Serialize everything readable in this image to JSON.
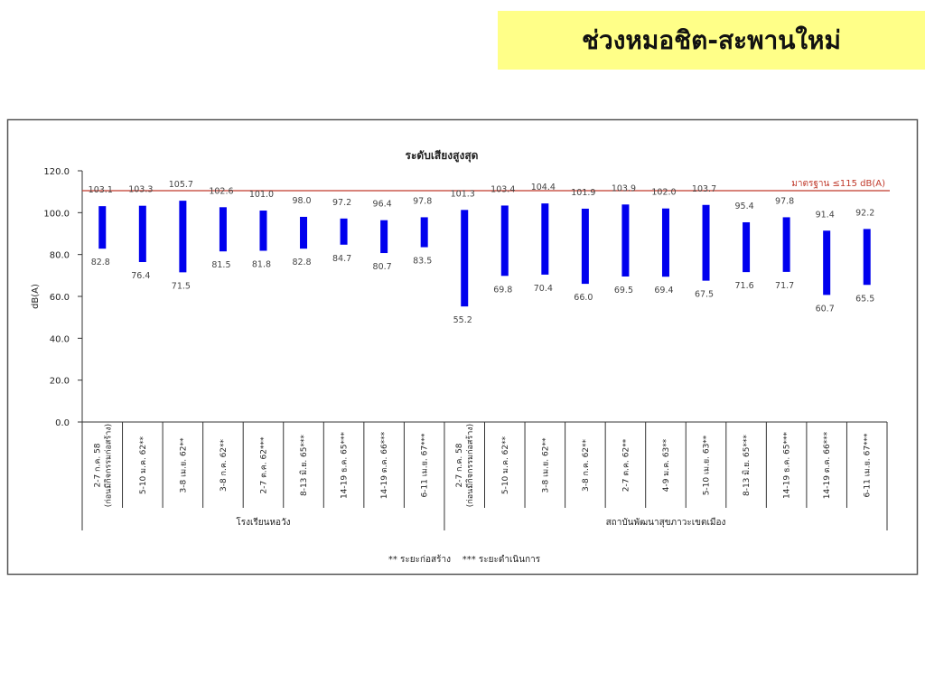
{
  "header": {
    "title": "ช่วงหมอชิต-สะพานใหม่",
    "background": "#ffff88"
  },
  "chart_data": {
    "type": "bar",
    "subtype": "floating-range",
    "title": "ระดับเสียงสูงสุด",
    "xlabel": "",
    "ylabel": "dB(A)",
    "ylim": [
      0,
      120
    ],
    "yticks": [
      "0.0",
      "20.0",
      "40.0",
      "60.0",
      "80.0",
      "100.0",
      "120.0"
    ],
    "grid": false,
    "bar_color": "#0000ee",
    "reference_line": {
      "label": "มาตรฐาน ≤115 dB(A)",
      "color": "#c0392b"
    },
    "groups": [
      {
        "name": "โรงเรียนหอวัง",
        "categories": [
          [
            "2-7 ก.ค. 58",
            "(ก่อนมีกิจกรรมก่อสร้าง)"
          ],
          [
            "5-10 ม.ค. 62**"
          ],
          [
            "3-8 เม.ย. 62**"
          ],
          [
            "3-8 ก.ค. 62**"
          ],
          [
            "2-7 ต.ค. 62***"
          ],
          [
            "8-13 มิ.ย. 65***"
          ],
          [
            "14-19 ธ.ค. 65***"
          ],
          [
            "14-19 ต.ค. 66***"
          ],
          [
            "6-11 เม.ย. 67***"
          ]
        ],
        "max": [
          103.1,
          103.3,
          105.7,
          102.6,
          101.0,
          98.0,
          97.2,
          96.4,
          97.8
        ],
        "min": [
          82.8,
          76.4,
          71.5,
          81.5,
          81.8,
          82.8,
          84.7,
          80.7,
          83.5
        ],
        "max_labels": [
          "103.1",
          "103.3",
          "105.7",
          "102.6",
          "101.0",
          "98.0",
          "97.2",
          "96.4",
          "97.8"
        ],
        "min_labels": [
          "82.8",
          "76.4",
          "71.5",
          "81.5",
          "81.8",
          "82.8",
          "84.7",
          "80.7",
          "83.5"
        ]
      },
      {
        "name": "สถาบันพัฒนาสุขภาวะเขตเมือง",
        "categories": [
          [
            "2-7 ก.ค. 58",
            "(ก่อนมีกิจกรรมก่อสร้าง)"
          ],
          [
            "5-10 ม.ค. 62**"
          ],
          [
            "3-8 เม.ย. 62**"
          ],
          [
            "3-8 ก.ค. 62**"
          ],
          [
            "2-7 ต.ค. 62**"
          ],
          [
            "4-9 ม.ค. 63**"
          ],
          [
            "5-10 เม.ย. 63**"
          ],
          [
            "8-13 มิ.ย. 65***"
          ],
          [
            "14-19 ธ.ค. 65***"
          ],
          [
            "14-19 ต.ค. 66***"
          ],
          [
            "6-11 เม.ย. 67***"
          ]
        ],
        "max": [
          101.3,
          103.4,
          104.4,
          101.9,
          103.9,
          102.0,
          103.7,
          95.4,
          97.8,
          91.4,
          92.2
        ],
        "min": [
          55.2,
          69.8,
          70.4,
          66.0,
          69.5,
          69.4,
          67.5,
          71.6,
          71.7,
          60.7,
          65.5
        ],
        "max_labels": [
          "101.3",
          "103.4",
          "104.4",
          "101.9",
          "103.9",
          "102.0",
          "103.7",
          "95.4",
          "97.8",
          "91.4",
          "92.2"
        ],
        "min_labels": [
          "55.2",
          "69.8",
          "70.4",
          "66.0",
          "69.5",
          "69.4",
          "67.5",
          "71.6",
          "71.7",
          "60.7",
          "65.5"
        ]
      }
    ],
    "footnote": "** ระยะก่อสร้าง    *** ระยะดำเนินการ"
  }
}
